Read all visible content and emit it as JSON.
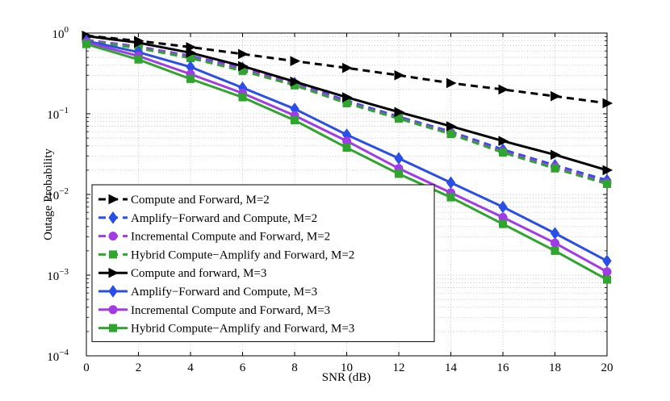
{
  "chart_data": {
    "type": "line",
    "title": "",
    "xlabel": "SNR (dB)",
    "ylabel": "Outage Probability",
    "xlim": [
      0,
      20
    ],
    "ylim": [
      0.0001,
      1
    ],
    "yscale": "log",
    "grid": true,
    "legend_position": "lower-left",
    "x_ticks": [
      "0",
      "2",
      "4",
      "6",
      "8",
      "10",
      "12",
      "14",
      "16",
      "18",
      "20"
    ],
    "y_ticks": [
      {
        "base": "10",
        "exp": "0"
      },
      {
        "base": "10",
        "exp": "−1"
      },
      {
        "base": "10",
        "exp": "−2"
      },
      {
        "base": "10",
        "exp": "−3"
      },
      {
        "base": "10",
        "exp": "−4"
      }
    ],
    "x": [
      0,
      2,
      4,
      6,
      8,
      10,
      12,
      14,
      16,
      18,
      20
    ],
    "series": [
      {
        "name": "Compute and Forward, M=2",
        "color": "#000000",
        "dash": "dashed",
        "marker": "triangle-right",
        "values": [
          0.93,
          0.8,
          0.67,
          0.55,
          0.45,
          0.37,
          0.3,
          0.24,
          0.2,
          0.165,
          0.135
        ]
      },
      {
        "name": "Amplify−Forward and Compute, M=2",
        "color": "#2a4fe8",
        "dash": "dashed",
        "marker": "diamond",
        "values": [
          0.82,
          0.68,
          0.52,
          0.37,
          0.24,
          0.145,
          0.092,
          0.06,
          0.036,
          0.023,
          0.015
        ]
      },
      {
        "name": "Incremental Compute and Forward, M=2",
        "color": "#a03be6",
        "dash": "dashed",
        "marker": "circle",
        "values": [
          0.82,
          0.68,
          0.51,
          0.36,
          0.235,
          0.14,
          0.089,
          0.058,
          0.034,
          0.022,
          0.014
        ]
      },
      {
        "name": "Hybrid Compute−Amplify and Forward, M=2",
        "color": "#2ea62e",
        "dash": "dashed",
        "marker": "square",
        "values": [
          0.8,
          0.65,
          0.49,
          0.34,
          0.225,
          0.135,
          0.087,
          0.056,
          0.033,
          0.021,
          0.0135
        ]
      },
      {
        "name": "Compute and forward, M=3",
        "color": "#000000",
        "dash": "solid",
        "marker": "triangle-right",
        "values": [
          0.92,
          0.76,
          0.57,
          0.39,
          0.25,
          0.16,
          0.105,
          0.07,
          0.046,
          0.031,
          0.02
        ]
      },
      {
        "name": "Amplify−Forward and Compute, M=3",
        "color": "#2a4fe8",
        "dash": "solid",
        "marker": "diamond",
        "values": [
          0.8,
          0.58,
          0.38,
          0.21,
          0.115,
          0.055,
          0.028,
          0.014,
          0.007,
          0.0033,
          0.0015
        ]
      },
      {
        "name": "Incremental Compute and Forward, M=3",
        "color": "#a03be6",
        "dash": "solid",
        "marker": "circle",
        "values": [
          0.77,
          0.52,
          0.31,
          0.18,
          0.095,
          0.046,
          0.021,
          0.0105,
          0.0052,
          0.0025,
          0.0011
        ]
      },
      {
        "name": "Hybrid Compute−Amplify and Forward, M=3",
        "color": "#2ea62e",
        "dash": "solid",
        "marker": "square",
        "values": [
          0.73,
          0.47,
          0.27,
          0.16,
          0.083,
          0.038,
          0.018,
          0.0092,
          0.0043,
          0.002,
          0.00088
        ]
      }
    ]
  }
}
